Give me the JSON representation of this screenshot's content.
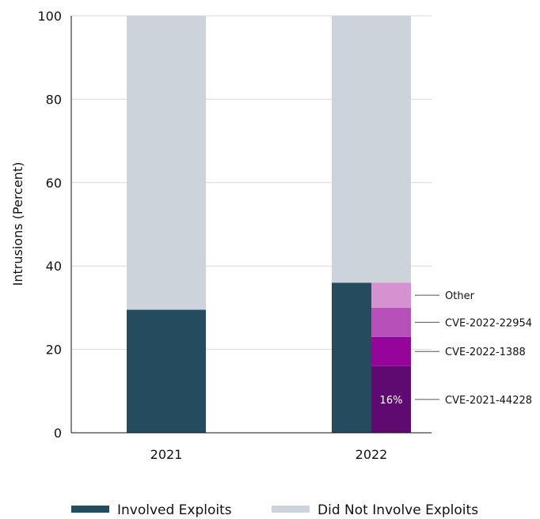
{
  "chart_data": {
    "type": "bar",
    "ylabel": "Intrusions (Percent)",
    "ylim": [
      0,
      100
    ],
    "yticks": [
      0,
      20,
      40,
      60,
      80,
      100
    ],
    "categories": [
      "2021",
      "2022"
    ],
    "series": [
      {
        "name": "Involved Exploits",
        "values": [
          29.5,
          36
        ],
        "color": "#244b5e"
      },
      {
        "name": "Did Not Involve Exploits",
        "values": [
          70.5,
          64
        ],
        "color": "#ccd3da"
      }
    ],
    "breakdown": {
      "category": "2022",
      "segments": [
        {
          "name": "CVE-2021-44228",
          "value": 16,
          "label": "16%",
          "color": "#5e0a70"
        },
        {
          "name": "CVE-2022-1388",
          "value": 7,
          "color": "#96049c"
        },
        {
          "name": "CVE-2022-22954",
          "value": 7,
          "color": "#b750b9"
        },
        {
          "name": "Other",
          "value": 6,
          "color": "#d692d0"
        }
      ]
    },
    "grid": true,
    "legend": "bottom"
  }
}
